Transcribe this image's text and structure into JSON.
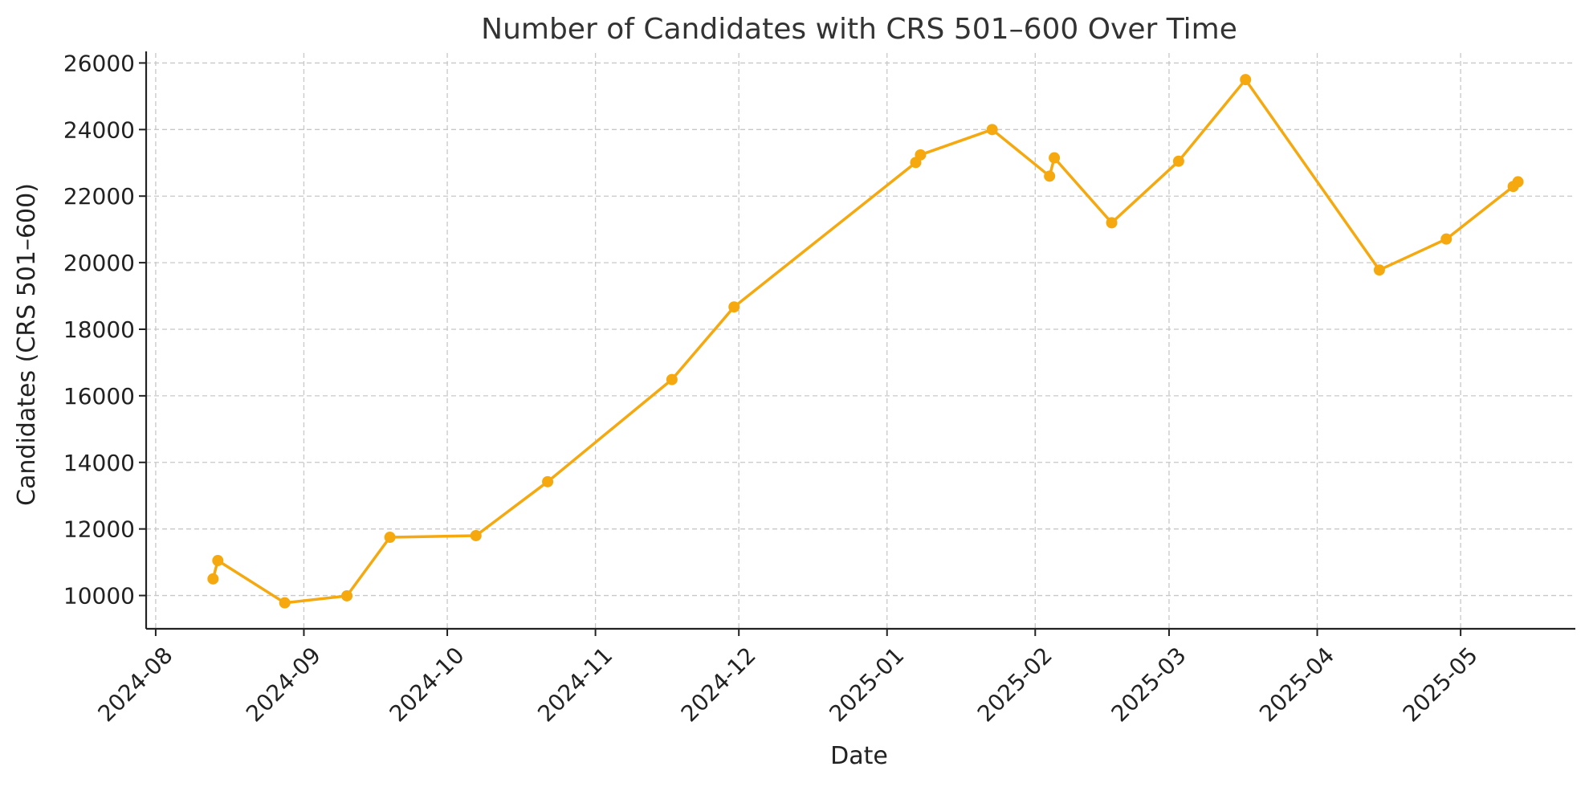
{
  "chart_data": {
    "type": "line",
    "title": "Number of Candidates with CRS 501–600 Over Time",
    "xlabel": "Date",
    "ylabel": "Candidates (CRS 501–600)",
    "ylim": [
      9000,
      26300
    ],
    "xlim": [
      "2024-07-30",
      "2025-05-25"
    ],
    "grid": true,
    "color": "#f5a90f",
    "x_ticks": [
      "2024-08",
      "2024-09",
      "2024-10",
      "2024-11",
      "2024-12",
      "2025-01",
      "2025-02",
      "2025-03",
      "2025-04",
      "2025-05"
    ],
    "x_tick_dates": [
      "2024-08-01",
      "2024-09-01",
      "2024-10-01",
      "2024-11-01",
      "2024-12-01",
      "2025-01-01",
      "2025-02-01",
      "2025-03-01",
      "2025-04-01",
      "2025-05-01"
    ],
    "y_ticks": [
      10000,
      12000,
      14000,
      16000,
      18000,
      20000,
      22000,
      24000,
      26000
    ],
    "series": [
      {
        "name": "Candidates (CRS 501–600)",
        "points": [
          {
            "date": "2024-08-13",
            "value": 10500
          },
          {
            "date": "2024-08-14",
            "value": 11050
          },
          {
            "date": "2024-08-28",
            "value": 9780
          },
          {
            "date": "2024-09-10",
            "value": 9990
          },
          {
            "date": "2024-09-19",
            "value": 11750
          },
          {
            "date": "2024-10-07",
            "value": 11800
          },
          {
            "date": "2024-10-22",
            "value": 13420
          },
          {
            "date": "2024-11-17",
            "value": 16490
          },
          {
            "date": "2024-11-30",
            "value": 18670
          },
          {
            "date": "2025-01-07",
            "value": 23010
          },
          {
            "date": "2025-01-08",
            "value": 23240
          },
          {
            "date": "2025-01-23",
            "value": 24000
          },
          {
            "date": "2025-02-04",
            "value": 22600
          },
          {
            "date": "2025-02-05",
            "value": 23150
          },
          {
            "date": "2025-02-17",
            "value": 21200
          },
          {
            "date": "2025-03-03",
            "value": 23050
          },
          {
            "date": "2025-03-17",
            "value": 25500
          },
          {
            "date": "2025-04-14",
            "value": 19780
          },
          {
            "date": "2025-04-28",
            "value": 20710
          },
          {
            "date": "2025-05-12",
            "value": 22290
          },
          {
            "date": "2025-05-13",
            "value": 22430
          }
        ]
      }
    ]
  }
}
